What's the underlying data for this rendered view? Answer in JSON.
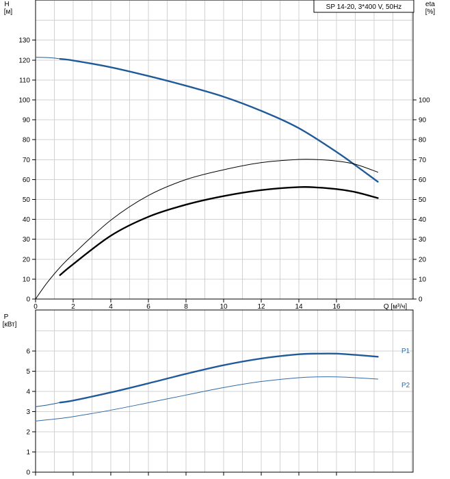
{
  "title_box": "SP 14-20, 3*400 V, 50Hz",
  "colors": {
    "blue": "#1f5a99",
    "blue_light": "#2f6aa8",
    "black": "#000000",
    "grid": "#d0d0d0"
  },
  "chart_data": [
    {
      "type": "line",
      "ylabel_left": [
        "H",
        "[м]"
      ],
      "ylabel_right": [
        "eta",
        "[%]"
      ],
      "xlabel": "Q [м³/ч]",
      "xlim": [
        0,
        20
      ],
      "xticks": [
        0,
        2,
        4,
        6,
        8,
        10,
        12,
        14,
        16
      ],
      "xtick_labels": [
        "0",
        "2",
        "4",
        "6",
        "8",
        "10",
        "12",
        "14",
        "16"
      ],
      "ylim": [
        0,
        150
      ],
      "yticks_left": [
        0,
        10,
        20,
        30,
        40,
        50,
        60,
        70,
        80,
        90,
        100,
        110,
        120,
        130
      ],
      "ytick_labels_left": [
        "0",
        "10",
        "20",
        "30",
        "40",
        "50",
        "60",
        "70",
        "80",
        "90",
        "100",
        "110",
        "120",
        "130"
      ],
      "yticks_right": [
        0,
        10,
        20,
        30,
        40,
        50,
        60,
        70,
        80,
        90,
        100
      ],
      "ytick_labels_right": [
        "0",
        "10",
        "20",
        "30",
        "40",
        "50",
        "60",
        "70",
        "80",
        "90",
        "100"
      ],
      "series": [
        {
          "role": "head",
          "color": "#1f5a99",
          "style": "thin",
          "x": [
            0,
            0.5,
            1,
            1.3
          ],
          "y": [
            121.4,
            121.3,
            121.0,
            120.6
          ]
        },
        {
          "role": "head",
          "color": "#1f5a99",
          "style": "thick",
          "x": [
            1.3,
            2,
            4,
            6,
            8,
            10,
            12,
            14,
            16,
            17,
            18.2
          ],
          "y": [
            120.6,
            119.8,
            116.4,
            112.0,
            107.1,
            101.6,
            94.5,
            85.8,
            73.9,
            67.2,
            58.9
          ]
        },
        {
          "role": "eta-motor",
          "color": "#000000",
          "style": "thin",
          "x": [
            0,
            0.6,
            1.3,
            2,
            4,
            6,
            8,
            10,
            12,
            14,
            15,
            16,
            17,
            18.2
          ],
          "y": [
            0,
            8.0,
            15.9,
            22.5,
            39.6,
            52.0,
            60.0,
            64.9,
            68.5,
            70.1,
            70.0,
            69.3,
            67.7,
            63.7
          ]
        },
        {
          "role": "eta-pump",
          "color": "#000000",
          "style": "thick",
          "x": [
            1.3,
            2,
            4,
            6,
            8,
            10,
            12,
            14,
            15,
            16,
            17,
            18.2
          ],
          "y": [
            12.0,
            17.5,
            31.8,
            41.3,
            47.4,
            51.7,
            54.7,
            56.2,
            56.0,
            55.2,
            53.7,
            50.7
          ]
        }
      ]
    },
    {
      "type": "line",
      "ylabel_left": [
        "P",
        "[кВт]"
      ],
      "xlim": [
        0,
        20
      ],
      "ylim": [
        0,
        7
      ],
      "yticks_left": [
        0,
        1,
        2,
        3,
        4,
        5,
        6
      ],
      "ytick_labels_left": [
        "0",
        "1",
        "2",
        "3",
        "4",
        "5",
        "6"
      ],
      "series": [
        {
          "name": "P1",
          "color": "#1f5a99",
          "style": "thin",
          "x": [
            0,
            0.7,
            1.3
          ],
          "y": [
            3.24,
            3.34,
            3.45
          ]
        },
        {
          "name": "P1",
          "color": "#1f5a99",
          "style": "thick",
          "x": [
            1.3,
            2,
            4,
            6,
            8,
            10,
            12,
            14,
            15,
            16,
            17,
            18.2
          ],
          "y": [
            3.45,
            3.55,
            3.95,
            4.4,
            4.87,
            5.3,
            5.63,
            5.84,
            5.87,
            5.87,
            5.81,
            5.72
          ]
        },
        {
          "name": "P2",
          "color": "#2f6aa8",
          "style": "thin",
          "x": [
            0,
            0.7,
            1.3,
            2,
            4,
            6,
            8,
            10,
            12,
            14,
            15,
            16,
            17,
            18.2
          ],
          "y": [
            2.53,
            2.6,
            2.66,
            2.75,
            3.07,
            3.44,
            3.82,
            4.19,
            4.49,
            4.68,
            4.72,
            4.72,
            4.68,
            4.61
          ]
        }
      ],
      "legend": [
        "P1",
        "P2"
      ]
    }
  ]
}
